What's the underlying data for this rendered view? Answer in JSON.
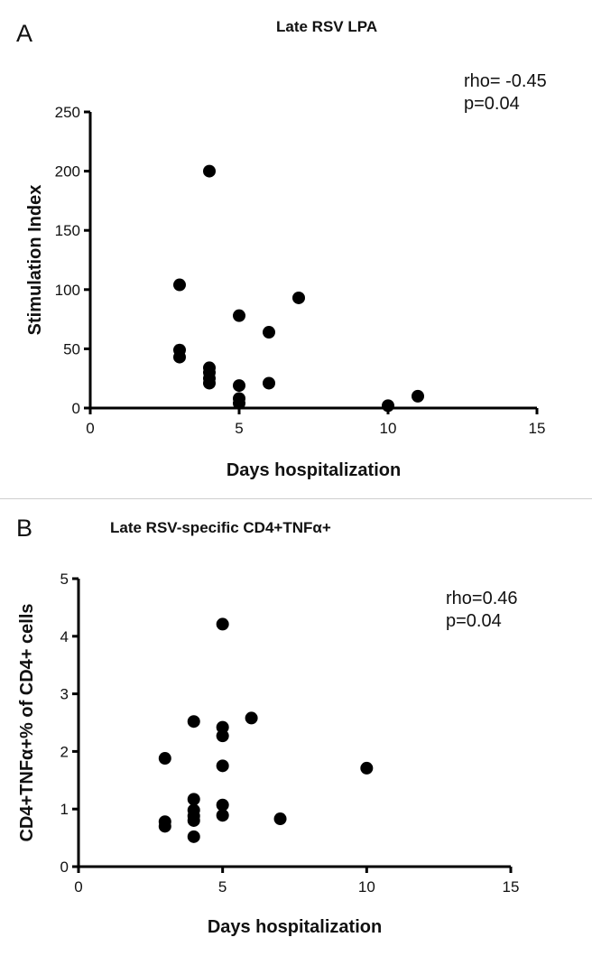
{
  "chart_data": [
    {
      "panel": "A",
      "type": "scatter",
      "title": "Late RSV LPA",
      "annotation": [
        "rho= -0.45",
        "p=0.04"
      ],
      "xlabel": "Days hospitalization",
      "ylabel": "Stimulation Index",
      "xlim": [
        0,
        15
      ],
      "ylim": [
        0,
        250
      ],
      "xticks": [
        0,
        5,
        10,
        15
      ],
      "yticks": [
        0,
        50,
        100,
        150,
        200,
        250
      ],
      "grid": false,
      "points": [
        {
          "x": 3,
          "y": 104
        },
        {
          "x": 3,
          "y": 49
        },
        {
          "x": 3,
          "y": 43
        },
        {
          "x": 4,
          "y": 200
        },
        {
          "x": 4,
          "y": 34
        },
        {
          "x": 4,
          "y": 30
        },
        {
          "x": 4,
          "y": 25
        },
        {
          "x": 4,
          "y": 21
        },
        {
          "x": 5,
          "y": 78
        },
        {
          "x": 5,
          "y": 19
        },
        {
          "x": 5,
          "y": 8
        },
        {
          "x": 5,
          "y": 4
        },
        {
          "x": 6,
          "y": 64
        },
        {
          "x": 6,
          "y": 21
        },
        {
          "x": 7,
          "y": 93
        },
        {
          "x": 10,
          "y": 2
        },
        {
          "x": 11,
          "y": 10
        }
      ]
    },
    {
      "panel": "B",
      "type": "scatter",
      "title": "Late RSV-specific CD4+TNFα+",
      "annotation": [
        "rho=0.46",
        "p=0.04"
      ],
      "xlabel": "Days hospitalization",
      "ylabel": "CD4+TNFα+% of CD4+ cells",
      "xlim": [
        0,
        15
      ],
      "ylim": [
        0,
        5
      ],
      "xticks": [
        0,
        5,
        10,
        15
      ],
      "yticks": [
        0,
        1,
        2,
        3,
        4,
        5
      ],
      "grid": false,
      "points": [
        {
          "x": 3,
          "y": 1.88
        },
        {
          "x": 3,
          "y": 0.78
        },
        {
          "x": 3,
          "y": 0.7
        },
        {
          "x": 4,
          "y": 2.52
        },
        {
          "x": 4,
          "y": 1.17
        },
        {
          "x": 4,
          "y": 0.98
        },
        {
          "x": 4,
          "y": 0.88
        },
        {
          "x": 4,
          "y": 0.8
        },
        {
          "x": 4,
          "y": 0.52
        },
        {
          "x": 5,
          "y": 4.21
        },
        {
          "x": 5,
          "y": 2.42
        },
        {
          "x": 5,
          "y": 2.27
        },
        {
          "x": 5,
          "y": 1.75
        },
        {
          "x": 5,
          "y": 1.07
        },
        {
          "x": 5,
          "y": 0.89
        },
        {
          "x": 6,
          "y": 2.58
        },
        {
          "x": 7,
          "y": 0.83
        },
        {
          "x": 10,
          "y": 1.71
        }
      ]
    }
  ]
}
